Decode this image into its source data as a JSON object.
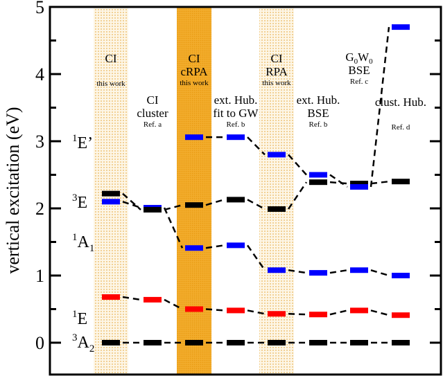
{
  "chart_data": {
    "type": "line",
    "title": "",
    "ylabel": "vertical excitation (eV)",
    "xlabel": "",
    "ylim": [
      -0.45,
      5
    ],
    "yticks": [
      "0",
      "1",
      "2",
      "3",
      "4",
      "5"
    ],
    "grid": false,
    "columns": [
      {
        "lines": [
          "CI"
        ],
        "ref": "this work",
        "band": "light"
      },
      {
        "lines": [
          "CI",
          "cluster"
        ],
        "ref": "Ref. a",
        "band": "none"
      },
      {
        "lines": [
          "CI",
          "cRPA"
        ],
        "ref": "this work",
        "band": "dark"
      },
      {
        "lines": [
          "ext. Hub.",
          "fit to GW"
        ],
        "ref": "Ref. b",
        "band": "none"
      },
      {
        "lines": [
          "CI",
          "RPA"
        ],
        "ref": "this work",
        "band": "light"
      },
      {
        "lines": [
          "ext. Hub.",
          "BSE"
        ],
        "ref": "Ref. b",
        "band": "none"
      },
      {
        "lines": [
          "G0W0",
          "BSE"
        ],
        "ref": "Ref. c",
        "band": "none"
      },
      {
        "lines": [
          "clust. Hub."
        ],
        "ref": "Ref. d",
        "band": "none"
      }
    ],
    "states": [
      {
        "label": "A",
        "sup": "3",
        "sub": "2",
        "value_at": 0
      },
      {
        "label": "E",
        "sup": "1",
        "sub": "",
        "value_at": 0.68
      },
      {
        "label": "A",
        "sup": "1",
        "sub": "1",
        "value_at": 1.85
      },
      {
        "label": "E",
        "sup": "3",
        "sub": "",
        "value_at": 2.35
      },
      {
        "label": "E’",
        "sup": "1",
        "sub": "",
        "value_at": 3.05
      }
    ],
    "series": [
      {
        "name": "3A2",
        "color": "#000000",
        "values": [
          0,
          0,
          0,
          0,
          0,
          0,
          0,
          0
        ]
      },
      {
        "name": "1E",
        "color": "#ff0000",
        "values": [
          0.68,
          0.64,
          0.5,
          0.48,
          0.43,
          0.42,
          0.48,
          0.41
        ]
      },
      {
        "name": "1A1",
        "color": "#0000ff",
        "values": [
          2.1,
          2.01,
          1.41,
          1.45,
          1.08,
          1.04,
          1.08,
          1.0
        ]
      },
      {
        "name": "3E",
        "color": "#000000",
        "values": [
          2.22,
          1.98,
          2.05,
          2.13,
          1.99,
          2.39,
          2.37,
          2.4
        ]
      },
      {
        "name": "1E'",
        "color": "#0000ff",
        "values": [
          null,
          null,
          3.06,
          3.06,
          2.8,
          2.5,
          2.32,
          4.7
        ]
      }
    ],
    "band_colors": {
      "light": "#f7dfae",
      "dark": "#f0a61f"
    }
  }
}
